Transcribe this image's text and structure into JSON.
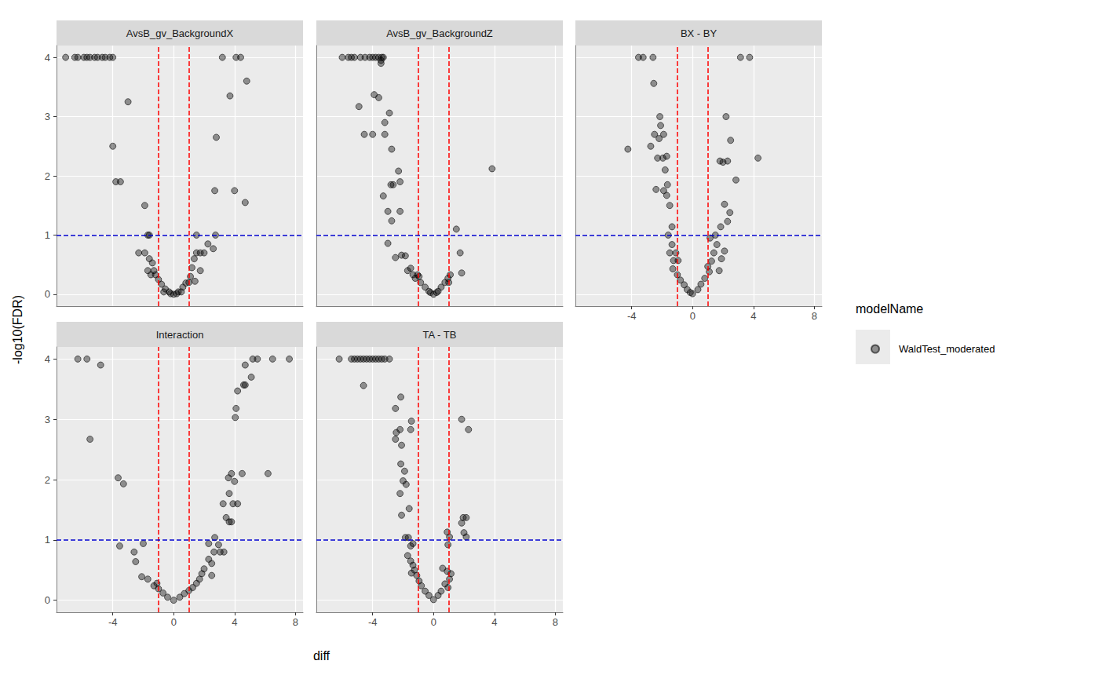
{
  "chart_data": {
    "type": "scatter",
    "x_label": "diff",
    "y_label": "-log10(FDR)",
    "legend_title": "modelName",
    "legend": "right",
    "grid": true,
    "xlim": [
      -7.7,
      8.5
    ],
    "xticks": [
      -4,
      0,
      4,
      8
    ],
    "ylim": [
      -0.2,
      4.2
    ],
    "yticks": [
      0,
      1,
      2,
      3,
      4
    ],
    "series": [
      {
        "name": "WaldTest_moderated",
        "color": "#000000",
        "marker": "circle"
      }
    ],
    "reference_lines": [
      {
        "axis": "x",
        "value": -1,
        "color": "#ff0000",
        "line_style": "dashed"
      },
      {
        "axis": "x",
        "value": 1,
        "color": "#ff0000",
        "line_style": "dashed"
      },
      {
        "axis": "y",
        "value": 1,
        "color": "#0000cd",
        "line_style": "dashed"
      }
    ],
    "panels": [
      {
        "title": "AvsB_gv_BackgroundX",
        "x": [
          -7.1,
          -6.5,
          -6.3,
          -5.9,
          -5.7,
          -5.5,
          -5.2,
          -5.0,
          -4.7,
          -4.5,
          -4.2,
          -4.0,
          3.2,
          4.1,
          4.4,
          4.8,
          3.7,
          -3.0,
          -4.0,
          -3.8,
          -3.5,
          -1.9,
          -1.7,
          -1.6,
          2.8,
          4.0,
          4.7,
          2.7,
          1.5,
          2.75,
          -2.3,
          -1.9,
          -1.6,
          -1.4,
          -1.3,
          -1.2,
          -1.0,
          -0.8,
          -0.55,
          -0.3,
          0,
          0.3,
          0.6,
          0.8,
          1.1,
          1.2,
          1.35,
          1.5,
          1.75,
          2.0,
          2.25,
          2.6,
          1.75,
          1.4,
          -1.7,
          -1.5,
          -0.65,
          0.5,
          0.2,
          -0.2,
          1.0
        ],
        "values": [
          4,
          4,
          4,
          4,
          4,
          4,
          4,
          4,
          4,
          4,
          4,
          4,
          4,
          4,
          4,
          3.6,
          3.35,
          3.25,
          2.5,
          1.9,
          1.9,
          1.5,
          1.0,
          1.0,
          2.65,
          1.75,
          1.55,
          1.75,
          1.0,
          1.0,
          0.7,
          0.7,
          0.6,
          0.53,
          0.4,
          0.33,
          0.25,
          0.17,
          0.09,
          0.04,
          0,
          0.04,
          0.12,
          0.19,
          0.3,
          0.45,
          0.6,
          0.7,
          0.7,
          0.7,
          0.85,
          0.77,
          0.4,
          0.22,
          0.4,
          0.33,
          0.04,
          0.04,
          0.01,
          0.01,
          0.2
        ]
      },
      {
        "title": "AvsB_gv_BackgroundZ",
        "x": [
          -6.0,
          -5.6,
          -5.4,
          -5.2,
          -4.8,
          -4.5,
          -4.2,
          -4.0,
          -3.8,
          -3.6,
          -3.4,
          -3.3,
          -3.45,
          -3.45,
          -3.9,
          -3.6,
          -4.9,
          -2.9,
          -3.2,
          -4.55,
          -4.0,
          -3.2,
          -2.75,
          -2.8,
          -2.65,
          -2.3,
          -2.2,
          -3.3,
          -3.0,
          -2.2,
          -2.75,
          -3.0,
          3.85,
          1.5,
          1.75,
          1.85,
          -2.5,
          -2.1,
          -1.85,
          -1.7,
          -1.5,
          -1.35,
          -1.2,
          -1.05,
          -0.85,
          -0.55,
          -0.3,
          0,
          0.3,
          0.5,
          0.75,
          0.95,
          1.1,
          1.0,
          0.2,
          -0.2,
          -0.95
        ],
        "values": [
          4,
          4,
          4,
          4,
          4,
          4,
          4,
          4,
          4,
          4,
          4,
          4,
          3.95,
          3.9,
          3.37,
          3.32,
          3.17,
          3.06,
          2.9,
          2.7,
          2.7,
          2.7,
          2.45,
          1.85,
          1.85,
          2.08,
          1.9,
          1.66,
          1.4,
          1.4,
          1.24,
          0.86,
          2.12,
          1.1,
          0.7,
          0.36,
          0.62,
          0.66,
          0.65,
          0.4,
          0.44,
          0.33,
          0.27,
          0.33,
          0.2,
          0.12,
          0.05,
          0,
          0.05,
          0.12,
          0.2,
          0.27,
          0.33,
          0.2,
          0.03,
          0.03,
          0.3
        ]
      },
      {
        "title": "BX - BY",
        "x": [
          -3.55,
          -3.25,
          -2.6,
          3.15,
          3.75,
          -2.55,
          -4.25,
          -2.75,
          -2.5,
          -2.15,
          -2.1,
          -2.2,
          -1.9,
          -1.95,
          -1.7,
          -2.3,
          -1.8,
          -2.4,
          -1.9,
          -1.65,
          -1.5,
          -1.7,
          -1.35,
          2.2,
          2.5,
          1.8,
          2.0,
          2.3,
          2.85,
          4.3,
          2.45,
          2.1,
          2.3,
          1.85,
          1.5,
          -1.6,
          -1.35,
          -1.5,
          -1.1,
          -1.25,
          -0.95,
          -1.3,
          -1.0,
          -0.8,
          -0.55,
          -0.35,
          0,
          0.35,
          0.55,
          0.8,
          1.1,
          1.25,
          1.4,
          1.6,
          1.15,
          2.1,
          1.9,
          1.75,
          1.0,
          -0.15
        ],
        "values": [
          4,
          4,
          4,
          4,
          4,
          3.56,
          2.45,
          2.5,
          2.7,
          3.0,
          2.85,
          2.63,
          2.7,
          2.3,
          2.33,
          2.3,
          2.1,
          1.77,
          1.75,
          1.85,
          1.5,
          1.67,
          1.14,
          3.0,
          2.6,
          2.25,
          2.23,
          2.25,
          1.93,
          2.3,
          1.38,
          1.52,
          1.23,
          1.14,
          1.0,
          1.0,
          0.84,
          0.7,
          0.7,
          0.57,
          0.57,
          0.43,
          0.33,
          0.24,
          0.16,
          0.08,
          0.01,
          0.08,
          0.17,
          0.27,
          0.38,
          0.56,
          0.7,
          0.84,
          0.95,
          0.73,
          0.6,
          0.4,
          0.47,
          0.03
        ]
      },
      {
        "title": "Interaction",
        "x": [
          -6.3,
          -5.7,
          -4.8,
          -5.5,
          -3.65,
          -3.3,
          -3.55,
          -2.0,
          -2.6,
          -2.5,
          5.2,
          5.5,
          6.5,
          7.6,
          4.7,
          5.1,
          4.6,
          4.7,
          4.2,
          4.1,
          4.05,
          6.2,
          4.5,
          3.8,
          3.6,
          4.0,
          3.65,
          4.2,
          3.9,
          3.25,
          3.45,
          3.8,
          3.65,
          2.7,
          2.95,
          2.3,
          2.65,
          3.3,
          3.05,
          2.3,
          2.5,
          2.0,
          1.85,
          1.7,
          2.5,
          1.5,
          1.25,
          1.0,
          0.7,
          0.4,
          0,
          -0.4,
          -0.7,
          -1.0,
          -1.3,
          -1.7,
          -2.1,
          -1.1
        ],
        "values": [
          4,
          4,
          3.9,
          2.67,
          2.03,
          1.93,
          0.9,
          0.94,
          0.8,
          0.64,
          4,
          4,
          4,
          4,
          3.9,
          3.7,
          3.57,
          3.57,
          3.47,
          3.18,
          3.03,
          2.1,
          2.1,
          2.1,
          2.03,
          1.97,
          1.77,
          1.6,
          1.6,
          1.6,
          1.37,
          1.3,
          1.3,
          1.04,
          0.92,
          0.94,
          0.8,
          0.8,
          0.8,
          0.68,
          0.61,
          0.52,
          0.44,
          0.35,
          0.41,
          0.28,
          0.21,
          0.16,
          0.11,
          0.05,
          0,
          0.05,
          0.12,
          0.19,
          0.24,
          0.35,
          0.39,
          0.28
        ]
      },
      {
        "title": "TA - TB",
        "x": [
          -6.2,
          -5.4,
          -5.2,
          -5.0,
          -4.8,
          -4.6,
          -4.4,
          -4.2,
          -4.0,
          -3.8,
          -3.6,
          -3.4,
          -3.2,
          -2.9,
          -4.6,
          -2.45,
          -2.2,
          -2.5,
          -2.1,
          -2.5,
          -2.15,
          -1.45,
          -1.5,
          -2.2,
          -1.8,
          -2.0,
          -2.15,
          -1.9,
          -2.1,
          -1.6,
          -1.65,
          -1.85,
          -1.35,
          -1.5,
          1.85,
          2.3,
          1.95,
          2.15,
          1.85,
          2.0,
          2.15,
          0.9,
          1.05,
          0.95,
          -1.7,
          -1.5,
          -1.35,
          -1.25,
          -1.1,
          -0.95,
          -0.8,
          -0.55,
          -0.3,
          0,
          0.3,
          0.5,
          0.75,
          0.6,
          0.9,
          1.05,
          0.95,
          1.15,
          -1.45
        ],
        "values": [
          4,
          4,
          4,
          4,
          4,
          4,
          4,
          4,
          4,
          4,
          4,
          4,
          4,
          4,
          3.56,
          2.78,
          2.83,
          2.67,
          2.57,
          3.18,
          3.37,
          2.97,
          2.83,
          1.77,
          1.92,
          1.98,
          2.26,
          2.14,
          1.41,
          1.52,
          1.04,
          1.04,
          0.94,
          0.9,
          3.0,
          2.83,
          1.37,
          1.37,
          1.28,
          1.12,
          1.05,
          1.13,
          1.05,
          0.92,
          0.74,
          0.65,
          0.58,
          0.5,
          0.41,
          0.32,
          0.24,
          0.15,
          0.08,
          0.01,
          0.08,
          0.15,
          0.27,
          0.53,
          0.48,
          0.35,
          0.21,
          0.44,
          0.45
        ]
      }
    ]
  }
}
